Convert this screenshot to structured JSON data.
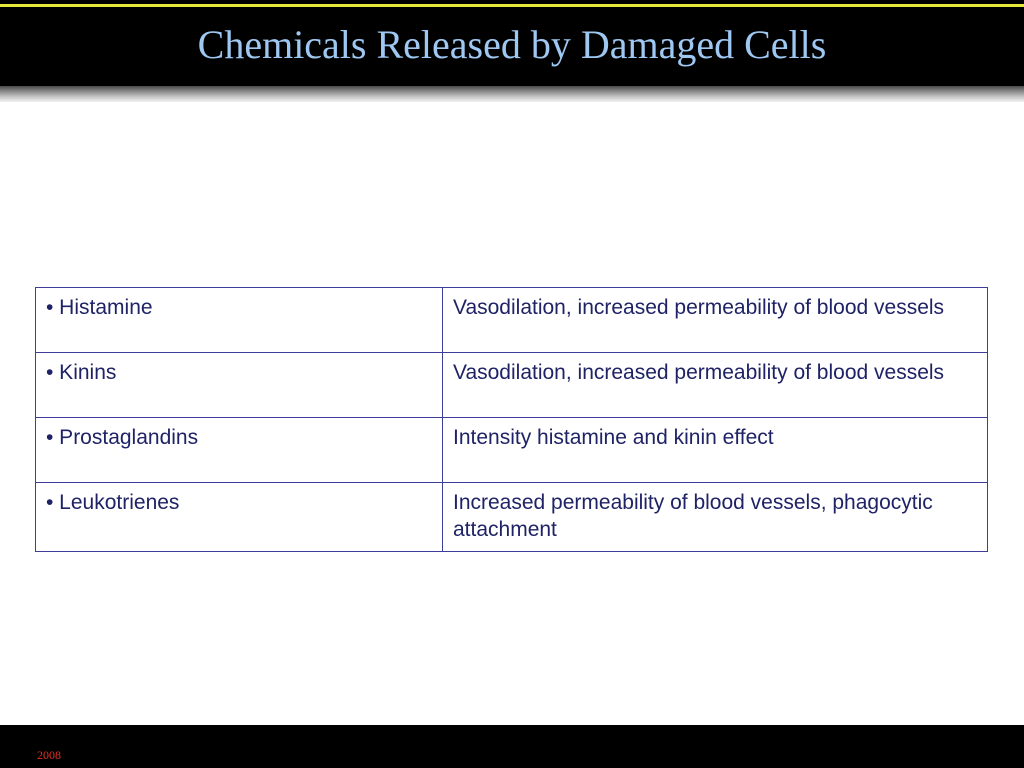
{
  "slide": {
    "title": "Chemicals Released by Damaged Cells",
    "footer_year": "2008"
  },
  "table": {
    "rows": [
      {
        "chemical": "• Histamine",
        "effect": "Vasodilation, increased permeability of blood vessels"
      },
      {
        "chemical": "• Kinins",
        "effect": "Vasodilation, increased permeability of blood vessels"
      },
      {
        "chemical": "• Prostaglandins",
        "effect": "Intensity histamine and kinin effect"
      },
      {
        "chemical": "• Leukotrienes",
        "effect": "Increased permeability of blood vessels, phagocytic attachment"
      }
    ]
  },
  "colors": {
    "title": "#9ec7f2",
    "header_background": "#000000",
    "header_accent_line": "#e8e83a",
    "table_border": "#3d3d9a",
    "table_text": "#1f2366",
    "footer_text": "#e0301e"
  }
}
